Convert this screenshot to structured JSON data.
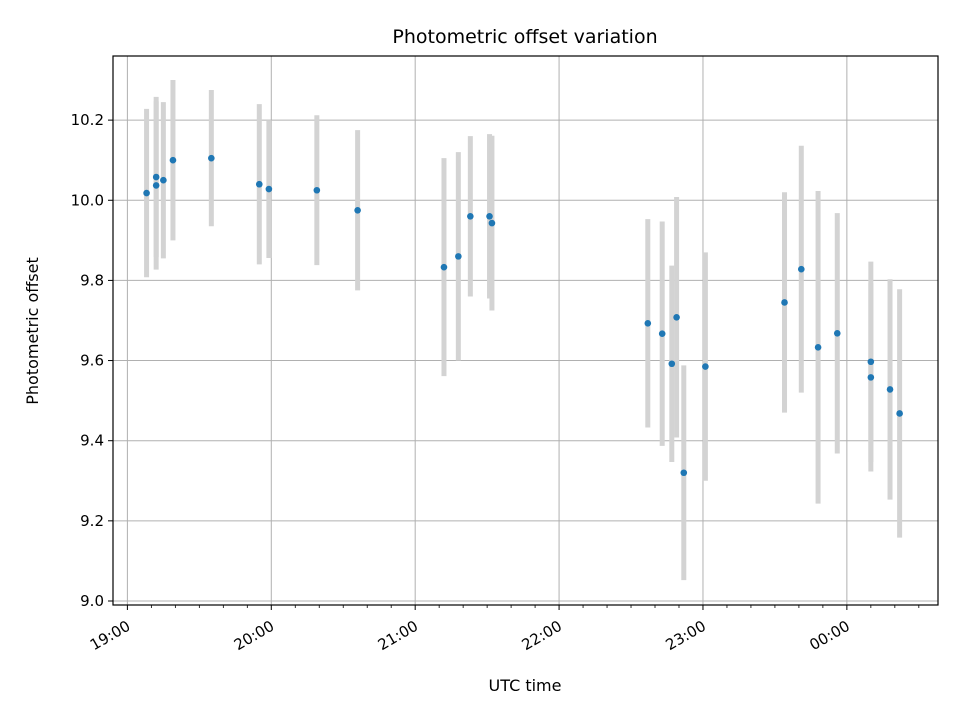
{
  "chart_data": {
    "type": "scatter",
    "title": "Photometric offset variation",
    "xlabel": "UTC time",
    "ylabel": "Photometric offset",
    "x_unit": "UTC time (HH:MM)",
    "xlim": [
      "18:54",
      "00:38"
    ],
    "ylim": [
      8.99,
      10.36
    ],
    "x_ticks": [
      "19:00",
      "20:00",
      "21:00",
      "22:00",
      "23:00",
      "00:00"
    ],
    "y_ticks": [
      "9.0",
      "9.2",
      "9.4",
      "9.6",
      "9.8",
      "10.0",
      "10.2"
    ],
    "grid": true,
    "marker_color": "#1f77b4",
    "errorbar_color": "#d3d3d3",
    "points": [
      {
        "x": "19:08",
        "y": 10.018,
        "err": 0.21
      },
      {
        "x": "19:12",
        "y": 10.037,
        "err": 0.21
      },
      {
        "x": "19:12",
        "y": 10.058,
        "err": 0.2
      },
      {
        "x": "19:15",
        "y": 10.05,
        "err": 0.195
      },
      {
        "x": "19:19",
        "y": 10.1,
        "err": 0.2
      },
      {
        "x": "19:35",
        "y": 10.105,
        "err": 0.17
      },
      {
        "x": "19:55",
        "y": 10.04,
        "err": 0.2
      },
      {
        "x": "19:59",
        "y": 10.028,
        "err": 0.172
      },
      {
        "x": "20:19",
        "y": 10.025,
        "err": 0.187
      },
      {
        "x": "20:36",
        "y": 9.975,
        "err": 0.2
      },
      {
        "x": "21:12",
        "y": 9.833,
        "err": 0.272
      },
      {
        "x": "21:18",
        "y": 9.86,
        "err": 0.26
      },
      {
        "x": "21:23",
        "y": 9.96,
        "err": 0.2
      },
      {
        "x": "21:31",
        "y": 9.96,
        "err": 0.205
      },
      {
        "x": "21:32",
        "y": 9.943,
        "err": 0.218
      },
      {
        "x": "22:37",
        "y": 9.693,
        "err": 0.26
      },
      {
        "x": "22:43",
        "y": 9.667,
        "err": 0.28
      },
      {
        "x": "22:47",
        "y": 9.592,
        "err": 0.245
      },
      {
        "x": "22:49",
        "y": 9.708,
        "err": 0.3
      },
      {
        "x": "22:52",
        "y": 9.32,
        "err": 0.268
      },
      {
        "x": "23:01",
        "y": 9.585,
        "err": 0.285
      },
      {
        "x": "23:34",
        "y": 9.745,
        "err": 0.275
      },
      {
        "x": "23:41",
        "y": 9.828,
        "err": 0.308
      },
      {
        "x": "23:48",
        "y": 9.633,
        "err": 0.39
      },
      {
        "x": "23:56",
        "y": 9.668,
        "err": 0.3
      },
      {
        "x": "00:10",
        "y": 9.558,
        "err": 0.235
      },
      {
        "x": "00:10",
        "y": 9.597,
        "err": 0.25
      },
      {
        "x": "00:18",
        "y": 9.528,
        "err": 0.275
      },
      {
        "x": "00:22",
        "y": 9.468,
        "err": 0.31
      }
    ]
  }
}
